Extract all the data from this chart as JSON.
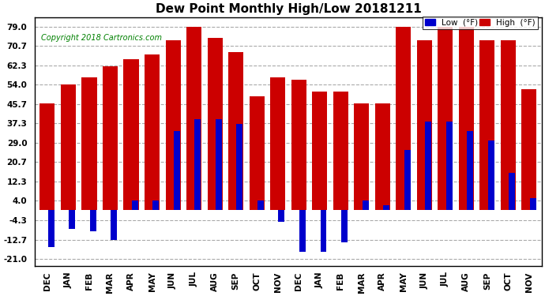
{
  "title": "Dew Point Monthly High/Low 20181211",
  "copyright": "Copyright 2018 Cartronics.com",
  "legend_low": "Low  (°F)",
  "legend_high": "High  (°F)",
  "low_color": "#0000cc",
  "high_color": "#cc0000",
  "background_color": "#ffffff",
  "grid_color": "#aaaaaa",
  "yticks": [
    -21.0,
    -12.7,
    -4.3,
    4.0,
    12.3,
    20.7,
    29.0,
    37.3,
    45.7,
    54.0,
    62.3,
    70.7,
    79.0
  ],
  "ylim": [
    -24.0,
    83.0
  ],
  "months": [
    "DEC",
    "JAN",
    "FEB",
    "MAR",
    "APR",
    "MAY",
    "JUN",
    "JUL",
    "AUG",
    "SEP",
    "OCT",
    "NOV",
    "DEC",
    "JAN",
    "FEB",
    "MAR",
    "APR",
    "MAY",
    "JUN",
    "JUL",
    "AUG",
    "SEP",
    "OCT",
    "NOV"
  ],
  "high_values": [
    46,
    54,
    57,
    62,
    65,
    67,
    73,
    79,
    74,
    68,
    49,
    57,
    56,
    51,
    51,
    46,
    46,
    79,
    73,
    79,
    79,
    73,
    73,
    52
  ],
  "low_values": [
    -16,
    -8,
    -9,
    -13,
    4,
    4,
    34,
    39,
    39,
    37,
    4,
    -5,
    -18,
    -18,
    -14,
    4,
    2,
    26,
    38,
    38,
    34,
    30,
    16,
    5
  ]
}
